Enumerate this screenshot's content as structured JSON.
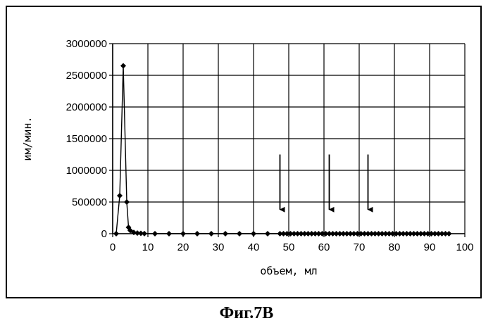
{
  "caption": "Фиг.7В",
  "chart_data": {
    "type": "scatter",
    "xlabel": "объем, мл",
    "ylabel": "им/мин.",
    "xlim": [
      0,
      100
    ],
    "ylim": [
      0,
      3000000
    ],
    "x_ticks": [
      0,
      10,
      20,
      30,
      40,
      50,
      60,
      70,
      80,
      90,
      100
    ],
    "y_ticks": [
      0,
      500000,
      1000000,
      1500000,
      2000000,
      2500000,
      3000000
    ],
    "x_tick_labels": [
      "0",
      "10",
      "20",
      "30",
      "40",
      "50",
      "60",
      "70",
      "80",
      "90",
      "100"
    ],
    "y_tick_labels": [
      "0",
      "500000",
      "1000000",
      "1500000",
      "2000000",
      "2500000",
      "3000000"
    ],
    "grid": true,
    "legend": "none",
    "line_color": "#000000",
    "marker_color": "#000000",
    "marker": "diamond",
    "series": [
      {
        "x": [
          1,
          2,
          3,
          4,
          4.5,
          5,
          6,
          7,
          8,
          9,
          12,
          16,
          20,
          24,
          28,
          32,
          36,
          40,
          44,
          47.5,
          48.5,
          49.5,
          50.5,
          51.5,
          52.5,
          53.5,
          54.5,
          55.5,
          56.5,
          57.5,
          58.5,
          59.5,
          60.5,
          61.5,
          62.5,
          63.5,
          64.5,
          65.5,
          66.5,
          67.5,
          68.5,
          69.5,
          70.5,
          71.5,
          72.5,
          73.5,
          74.5,
          75.5,
          76.5,
          77.5,
          78.5,
          79.5,
          80.5,
          81.5,
          82.5,
          83.5,
          84.5,
          85.5,
          86.5,
          87.5,
          88.5,
          89.5,
          90.5,
          91.5,
          92.5,
          93.5,
          94.5,
          95.5
        ],
        "y": [
          0,
          600000,
          2650000,
          500000,
          100000,
          50000,
          20000,
          10000,
          5000,
          2000,
          0,
          0,
          0,
          0,
          0,
          0,
          0,
          0,
          0,
          0,
          0,
          0,
          0,
          0,
          0,
          0,
          0,
          0,
          0,
          0,
          0,
          0,
          0,
          0,
          0,
          0,
          0,
          0,
          0,
          0,
          0,
          0,
          0,
          0,
          0,
          0,
          0,
          0,
          0,
          0,
          0,
          0,
          0,
          0,
          0,
          0,
          0,
          0,
          0,
          0,
          0,
          0,
          0,
          0,
          0,
          0,
          0,
          0
        ]
      }
    ],
    "annotations": [
      {
        "type": "arrow-down",
        "x": 47.5,
        "y_from": 1250000,
        "y_to": 380000
      },
      {
        "type": "arrow-down",
        "x": 61.5,
        "y_from": 1250000,
        "y_to": 380000
      },
      {
        "type": "arrow-down",
        "x": 72.5,
        "y_from": 1250000,
        "y_to": 380000
      }
    ]
  }
}
